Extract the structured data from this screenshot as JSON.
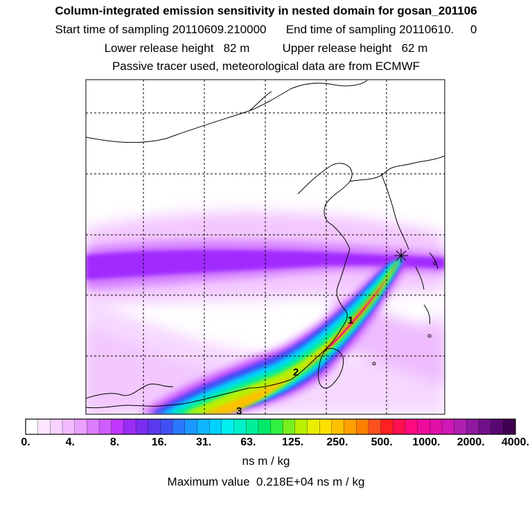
{
  "titles": {
    "line1": "Column-integrated emission sensitivity in nested domain for gosan_201106",
    "line2": "Start time of sampling 20110609.210000      End time of sampling 20110610.     0",
    "line3": "Lower release height   82 m          Upper release height   62 m",
    "line4": "Passive tracer used, meteorological data are from ECMWF"
  },
  "plume_labels": [
    "1",
    "2",
    "3"
  ],
  "colorbar": {
    "tick_labels": [
      "0.",
      "4.",
      "8.",
      "16.",
      "31.",
      "63.",
      "125.",
      "250.",
      "500.",
      "1000.",
      "2000.",
      "4000."
    ],
    "colors": [
      "#ffffff",
      "#fce6ff",
      "#f8d2ff",
      "#f3bcff",
      "#e9a0ff",
      "#dc7dff",
      "#cf5cff",
      "#bf38ff",
      "#9b2cf5",
      "#7a2ef0",
      "#5a38f0",
      "#3f50f5",
      "#2a78ff",
      "#1b98ff",
      "#10b6ff",
      "#00d2ff",
      "#00f0f0",
      "#00f0c8",
      "#00f09a",
      "#00e86a",
      "#30f040",
      "#78f020",
      "#b8f000",
      "#e8f000",
      "#ffe000",
      "#ffc000",
      "#ffa000",
      "#ff8000",
      "#ff5020",
      "#ff2020",
      "#ff1050",
      "#ff0c80",
      "#f00c9a",
      "#e010a8",
      "#cf18b5",
      "#b020b0",
      "#9018a0",
      "#701088",
      "#580870",
      "#400050"
    ],
    "units": "ns m / kg"
  },
  "maximum": "Maximum value  0.218E+04 ns m / kg"
}
